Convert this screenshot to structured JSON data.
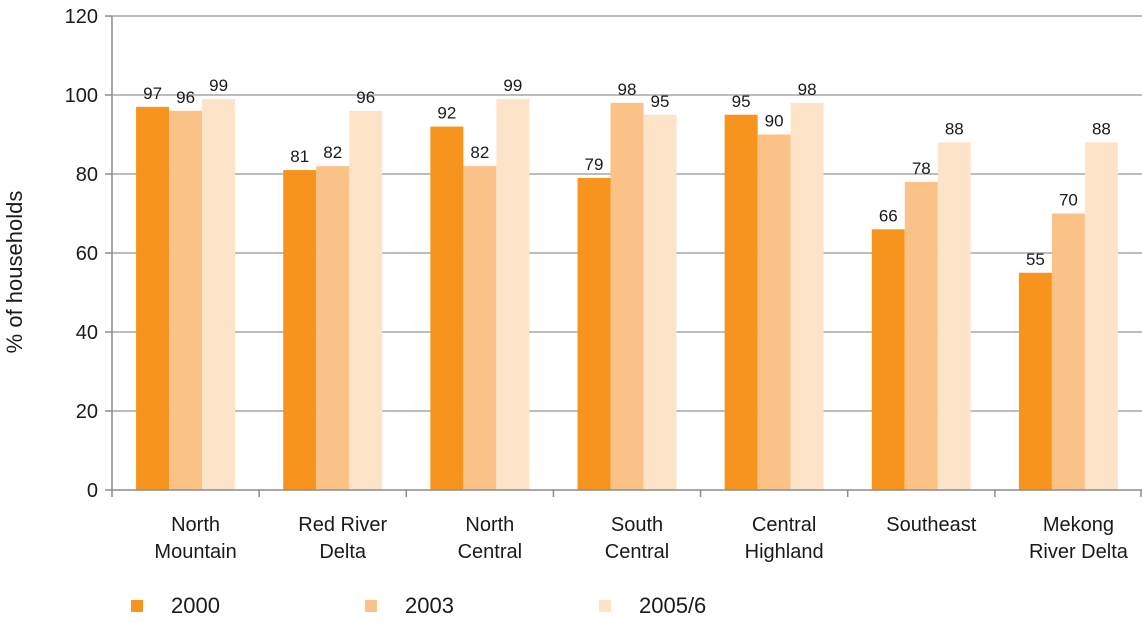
{
  "chart_data": {
    "type": "bar",
    "ylabel": "% of households",
    "ylim": [
      0,
      120
    ],
    "yticks": [
      0,
      20,
      40,
      60,
      80,
      100,
      120
    ],
    "grid": true,
    "legend_position": "bottom-left",
    "categories": [
      [
        "North",
        "Mountain"
      ],
      [
        "Red River",
        "Delta"
      ],
      [
        "North",
        "Central"
      ],
      [
        "South",
        "Central"
      ],
      [
        "Central",
        "Highland"
      ],
      [
        "Southeast"
      ],
      [
        "Mekong",
        "River Delta"
      ]
    ],
    "series": [
      {
        "name": "2000",
        "color": "#f7941d",
        "values": [
          97,
          81,
          92,
          79,
          95,
          66,
          55
        ]
      },
      {
        "name": "2003",
        "color": "#fbc288",
        "values": [
          96,
          82,
          82,
          98,
          90,
          78,
          70
        ]
      },
      {
        "name": "2005/6",
        "color": "#fde3c8",
        "values": [
          99,
          96,
          99,
          95,
          98,
          88,
          88
        ]
      }
    ]
  }
}
